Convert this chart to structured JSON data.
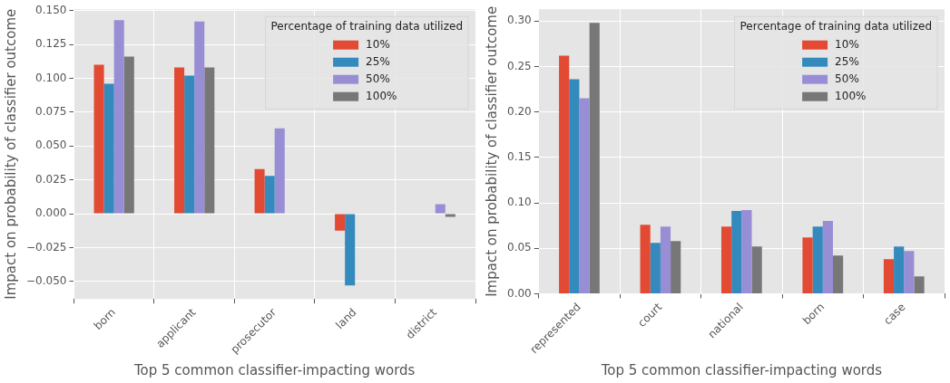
{
  "chart_data": [
    {
      "type": "bar",
      "xlabel": "Top 5 common classifier-impacting words",
      "ylabel": "Impact on probability of classifier outcome",
      "categories": [
        "born",
        "applicant",
        "prosecutor",
        "land",
        "district"
      ],
      "legend_title": "Percentage of training data utilized",
      "legend": "top right",
      "grid": true,
      "ylim": [
        -0.063,
        0.151
      ],
      "yticks": [
        {
          "value": -0.05,
          "label": "−0.050"
        },
        {
          "value": -0.025,
          "label": "−0.025"
        },
        {
          "value": 0,
          "label": "0.000"
        },
        {
          "value": 0.025,
          "label": "0.025"
        },
        {
          "value": 0.05,
          "label": "0.050"
        },
        {
          "value": 0.075,
          "label": "0.075"
        },
        {
          "value": 0.1,
          "label": "0.100"
        },
        {
          "value": 0.125,
          "label": "0.125"
        },
        {
          "value": 0.15,
          "label": "0.150"
        }
      ],
      "series": [
        {
          "name": "10%",
          "color": "#e24a33",
          "values": [
            0.11,
            0.108,
            0.033,
            -0.0125,
            null
          ]
        },
        {
          "name": "25%",
          "color": "#348abd",
          "values": [
            0.096,
            0.102,
            0.028,
            -0.053,
            null
          ]
        },
        {
          "name": "50%",
          "color": "#988ed5",
          "values": [
            0.143,
            0.142,
            0.063,
            null,
            0.007
          ]
        },
        {
          "name": "100%",
          "color": "#777777",
          "values": [
            0.116,
            0.108,
            null,
            null,
            -0.0023
          ]
        }
      ]
    },
    {
      "type": "bar",
      "xlabel": "Top 5 common classifier-impacting words",
      "ylabel": "Impact on probability of classifier outcome",
      "categories": [
        "represented",
        "court",
        "national",
        "born",
        "case"
      ],
      "legend_title": "Percentage of training data utilized",
      "legend": "top right",
      "grid": true,
      "ylim": [
        0,
        0.313
      ],
      "yticks": [
        {
          "value": 0,
          "label": "0.00"
        },
        {
          "value": 0.05,
          "label": "0.05"
        },
        {
          "value": 0.1,
          "label": "0.10"
        },
        {
          "value": 0.15,
          "label": "0.15"
        },
        {
          "value": 0.2,
          "label": "0.20"
        },
        {
          "value": 0.25,
          "label": "0.25"
        },
        {
          "value": 0.3,
          "label": "0.30"
        }
      ],
      "series": [
        {
          "name": "10%",
          "color": "#e24a33",
          "values": [
            0.262,
            0.076,
            0.074,
            0.062,
            0.038
          ]
        },
        {
          "name": "25%",
          "color": "#348abd",
          "values": [
            0.236,
            0.056,
            0.091,
            0.074,
            0.052
          ]
        },
        {
          "name": "50%",
          "color": "#988ed5",
          "values": [
            0.215,
            0.074,
            0.092,
            0.08,
            0.047
          ]
        },
        {
          "name": "100%",
          "color": "#777777",
          "values": [
            0.298,
            0.058,
            0.052,
            0.042,
            0.019
          ]
        }
      ]
    }
  ]
}
